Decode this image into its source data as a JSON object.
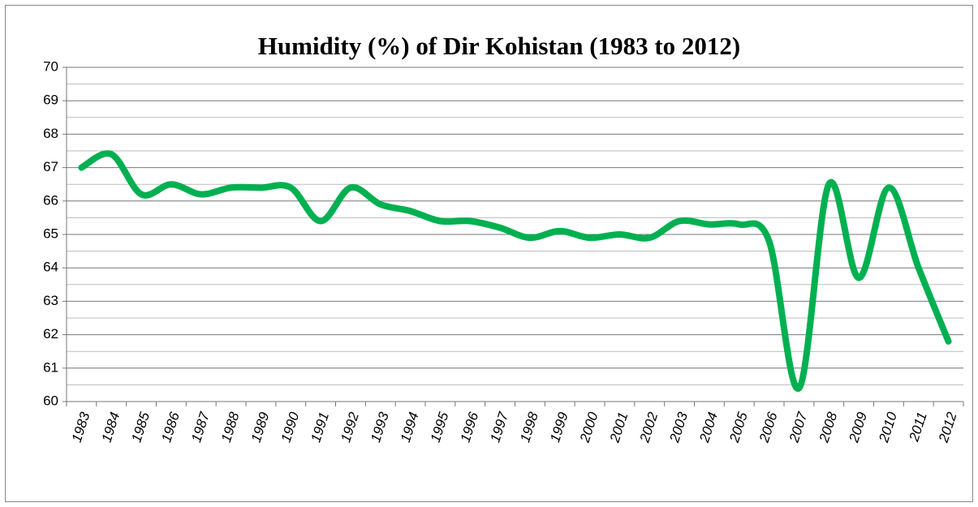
{
  "chart_data": {
    "type": "line",
    "title": "Humidity (%) of  Dir Kohistan  (1983 to 2012)",
    "categories": [
      "1983",
      "1984",
      "1985",
      "1986",
      "1987",
      "1988",
      "1989",
      "1990",
      "1991",
      "1992",
      "1993",
      "1994",
      "1995",
      "1996",
      "1997",
      "1998",
      "1999",
      "2000",
      "2001",
      "2002",
      "2003",
      "2004",
      "2005",
      "2006",
      "2007",
      "2008",
      "2009",
      "2010",
      "2011",
      "2012"
    ],
    "values": [
      67.0,
      67.4,
      66.2,
      66.5,
      66.2,
      66.4,
      66.4,
      66.4,
      65.4,
      66.4,
      65.9,
      65.7,
      65.4,
      65.4,
      65.2,
      64.9,
      65.1,
      64.9,
      65.0,
      64.9,
      65.4,
      65.3,
      65.3,
      64.8,
      60.4,
      66.5,
      63.7,
      66.4,
      64.0,
      61.8
    ],
    "color": "#00b050",
    "smooth": true,
    "ylim": [
      60,
      70
    ],
    "yticks": [
      60,
      61,
      62,
      63,
      64,
      65,
      66,
      67,
      68,
      69,
      70
    ],
    "grid": true,
    "minor_grid": true
  }
}
